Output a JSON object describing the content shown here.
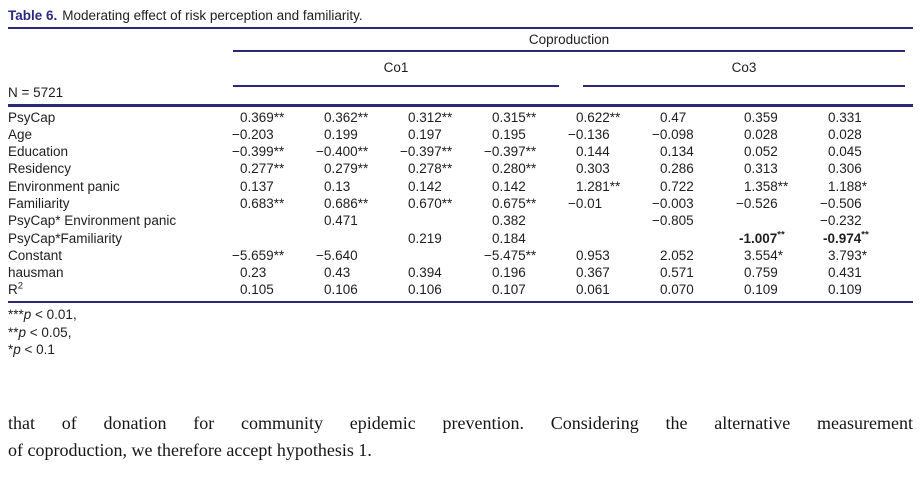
{
  "caption": {
    "label": "Table 6.",
    "text": "Moderating effect of risk perception and familiarity."
  },
  "table": {
    "n_label": "N = 5721",
    "group_header": "Coproduction",
    "subheaders": [
      "Co1",
      "Co3"
    ],
    "rows": [
      {
        "label": "PsyCap",
        "values": [
          "0.369**",
          "0.362**",
          "0.312**",
          "0.315**",
          "0.622**",
          "0.47",
          "0.359",
          "0.331"
        ]
      },
      {
        "label": "Age",
        "values": [
          "−0.203",
          "0.199",
          "0.197",
          "0.195",
          "−0.136",
          "−0.098",
          "0.028",
          "0.028"
        ]
      },
      {
        "label": "Education",
        "values": [
          "−0.399**",
          "−0.400**",
          "−0.397**",
          "−0.397**",
          "0.144",
          "0.134",
          "0.052",
          "0.045"
        ]
      },
      {
        "label": "Residency",
        "values": [
          "0.277**",
          "0.279**",
          "0.278**",
          "0.280**",
          "0.303",
          "0.286",
          "0.313",
          "0.306"
        ]
      },
      {
        "label": "Environment panic",
        "values": [
          "0.137",
          "0.13",
          "0.142",
          "0.142",
          "1.281**",
          "0.722",
          "1.358**",
          "1.188*"
        ]
      },
      {
        "label": "Familiarity",
        "values": [
          "0.683**",
          "0.686**",
          "0.670**",
          "0.675**",
          "−0.01",
          "−0.003",
          "−0.526",
          "−0.506"
        ]
      },
      {
        "label": "PsyCap* Environment panic",
        "values": [
          "",
          "0.471",
          "",
          "0.382",
          "",
          "−0.805",
          "",
          "−0.232"
        ]
      },
      {
        "label": "PsyCap*Familiarity",
        "values": [
          "",
          "",
          "0.219",
          "0.184",
          "",
          "",
          {
            "text": "-1.007",
            "sup": "**",
            "bold": true
          },
          {
            "text": "-0.974",
            "sup": "**",
            "bold": true
          }
        ]
      },
      {
        "label": "Constant",
        "values": [
          "−5.659**",
          "−5.640",
          "",
          "−5.475**",
          "0.953",
          "2.052",
          "3.554*",
          "3.793*"
        ]
      },
      {
        "label": "hausman",
        "values": [
          "0.23",
          "0.43",
          "0.394",
          "0.196",
          "0.367",
          "0.571",
          "0.759",
          "0.431"
        ]
      },
      {
        "label": "R",
        "label_sup": "2",
        "values": [
          "0.105",
          "0.106",
          "0.106",
          "0.107",
          "0.061",
          "0.070",
          "0.109",
          "0.109"
        ]
      }
    ]
  },
  "footnotes": [
    {
      "stars": "***",
      "p": "p",
      "text": " < 0.01,"
    },
    {
      "stars": "**",
      "p": "p",
      "text": " < 0.05,"
    },
    {
      "stars": "*",
      "p": "p",
      "text": " < 0.1"
    }
  ],
  "paragraph": {
    "lines": [
      "that of donation for community epidemic prevention. Considering the alternative measurement",
      "of coproduction, we therefore accept hypothesis 1."
    ]
  },
  "colors": {
    "accent_navy": "#29297a",
    "caption_label_navy": "#2a2a85",
    "text": "#1e1e1e"
  }
}
